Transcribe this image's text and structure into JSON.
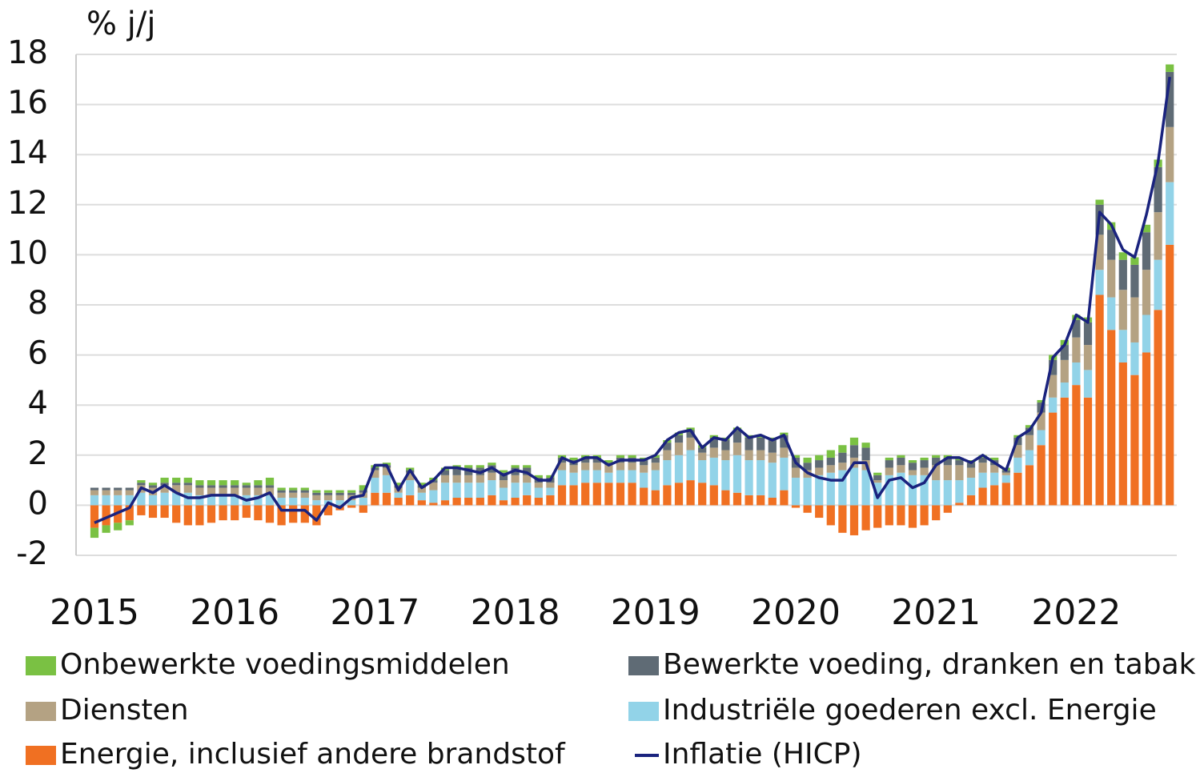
{
  "chart_data": {
    "type": "bar",
    "stacked": true,
    "y_axis_label": "% j/j",
    "categories": [
      "2015",
      null,
      null,
      null,
      null,
      null,
      null,
      null,
      null,
      null,
      null,
      null,
      "2016",
      null,
      null,
      null,
      null,
      null,
      null,
      null,
      null,
      null,
      null,
      null,
      "2017",
      null,
      null,
      null,
      null,
      null,
      null,
      null,
      null,
      null,
      null,
      null,
      "2018",
      null,
      null,
      null,
      null,
      null,
      null,
      null,
      null,
      null,
      null,
      null,
      "2019",
      null,
      null,
      null,
      null,
      null,
      null,
      null,
      null,
      null,
      null,
      null,
      "2020",
      null,
      null,
      null,
      null,
      null,
      null,
      null,
      null,
      null,
      null,
      null,
      "2021",
      null,
      null,
      null,
      null,
      null,
      null,
      null,
      null,
      null,
      null,
      null,
      "2022",
      null,
      null,
      null,
      null,
      null,
      null,
      null,
      null
    ],
    "ylim": [
      -2,
      18
    ],
    "yticks": [
      -2,
      0,
      2,
      4,
      6,
      8,
      10,
      12,
      14,
      16,
      18
    ],
    "grid": true,
    "legend": "bottom",
    "series": [
      {
        "name": "Onbewerkte voedingsmiddelen",
        "color": "#7ac143",
        "values": [
          -0.4,
          -0.3,
          -0.3,
          -0.2,
          0.1,
          0.1,
          0.2,
          0.2,
          0.2,
          0.2,
          0.2,
          0.2,
          0.2,
          0.1,
          0.2,
          0.3,
          0.1,
          0.1,
          0.1,
          0.1,
          0.1,
          0.1,
          0.1,
          0.2,
          0.1,
          0.1,
          0.1,
          0.1,
          0.1,
          0.1,
          0.1,
          0.1,
          0.1,
          0.1,
          0.1,
          0.1,
          0.1,
          0.1,
          0.1,
          0.1,
          0.1,
          0.1,
          0.1,
          0.1,
          0.1,
          0.1,
          0.1,
          0.1,
          0.1,
          0.1,
          0.1,
          0.1,
          0.1,
          0.1,
          0.1,
          0.1,
          0.1,
          0.1,
          0.1,
          0.1,
          0.1,
          0.2,
          0.2,
          0.3,
          0.3,
          0.3,
          0.2,
          0.1,
          0.1,
          0.1,
          0.1,
          0.1,
          0.1,
          0.1,
          0.1,
          0.1,
          0.1,
          0.1,
          0.1,
          0.1,
          0.1,
          0.1,
          0.2,
          0.2,
          0.2,
          0.2,
          0.2,
          0.3,
          0.3,
          0.3,
          0.3,
          0.3,
          0.3
        ]
      },
      {
        "name": "Bewerkte voeding, dranken en tabak",
        "color": "#5f6b75",
        "values": [
          0.1,
          0.1,
          0.1,
          0.1,
          0.1,
          0.1,
          0.1,
          0.1,
          0.1,
          0.1,
          0.1,
          0.1,
          0.1,
          0.1,
          0.1,
          0.1,
          0.1,
          0.1,
          0.1,
          0.1,
          0.1,
          0.1,
          0.1,
          0.1,
          0.1,
          0.1,
          0.1,
          0.1,
          0.1,
          0.1,
          0.2,
          0.3,
          0.3,
          0.3,
          0.3,
          0.3,
          0.3,
          0.3,
          0.2,
          0.2,
          0.2,
          0.2,
          0.2,
          0.2,
          0.1,
          0.2,
          0.2,
          0.2,
          0.2,
          0.3,
          0.3,
          0.3,
          0.2,
          0.4,
          0.4,
          0.5,
          0.5,
          0.5,
          0.5,
          0.5,
          0.4,
          0.3,
          0.3,
          0.3,
          0.4,
          0.5,
          0.5,
          0.2,
          0.3,
          0.3,
          0.3,
          0.3,
          0.3,
          0.3,
          0.2,
          0.2,
          0.2,
          0.2,
          0.1,
          0.3,
          0.3,
          0.4,
          0.6,
          0.6,
          0.7,
          0.9,
          1.2,
          1.2,
          1.2,
          1.3,
          1.5,
          1.8,
          2.2
        ]
      },
      {
        "name": "Diensten",
        "color": "#b4a283",
        "values": [
          0.2,
          0.2,
          0.2,
          0.2,
          0.3,
          0.3,
          0.3,
          0.3,
          0.3,
          0.3,
          0.3,
          0.3,
          0.3,
          0.3,
          0.3,
          0.3,
          0.2,
          0.2,
          0.2,
          0.2,
          0.2,
          0.2,
          0.2,
          0.2,
          0.3,
          0.3,
          0.2,
          0.3,
          0.2,
          0.3,
          0.3,
          0.3,
          0.3,
          0.3,
          0.3,
          0.3,
          0.3,
          0.3,
          0.2,
          0.2,
          0.3,
          0.3,
          0.3,
          0.3,
          0.3,
          0.3,
          0.3,
          0.3,
          0.3,
          0.4,
          0.5,
          0.5,
          0.3,
          0.4,
          0.4,
          0.5,
          0.4,
          0.4,
          0.4,
          0.4,
          0.4,
          0.3,
          0.3,
          0.3,
          0.3,
          0.4,
          0.4,
          0.1,
          0.3,
          0.3,
          0.2,
          0.3,
          0.6,
          0.6,
          0.6,
          0.4,
          0.4,
          0.3,
          0.1,
          0.5,
          0.6,
          0.7,
          0.9,
          0.9,
          1.0,
          1.0,
          1.4,
          1.5,
          1.6,
          1.8,
          1.8,
          1.9,
          2.2
        ]
      },
      {
        "name": "Industriële goederen excl. Energie",
        "color": "#92d3e8",
        "values": [
          0.4,
          0.4,
          0.4,
          0.4,
          0.5,
          0.4,
          0.5,
          0.5,
          0.5,
          0.4,
          0.4,
          0.4,
          0.4,
          0.4,
          0.4,
          0.4,
          0.3,
          0.3,
          0.3,
          0.2,
          0.2,
          0.2,
          0.2,
          0.3,
          0.6,
          0.7,
          0.2,
          0.6,
          0.3,
          0.5,
          0.7,
          0.6,
          0.6,
          0.6,
          0.6,
          0.5,
          0.6,
          0.5,
          0.4,
          0.3,
          0.6,
          0.5,
          0.5,
          0.5,
          0.4,
          0.5,
          0.5,
          0.6,
          0.8,
          1.0,
          1.1,
          1.2,
          0.9,
          1.1,
          1.2,
          1.5,
          1.4,
          1.4,
          1.4,
          1.3,
          1.1,
          1.1,
          1.2,
          1.3,
          1.4,
          1.5,
          1.4,
          0.9,
          1.2,
          1.3,
          1.2,
          1.2,
          1.0,
          1.0,
          0.9,
          0.7,
          0.6,
          0.5,
          0.3,
          0.6,
          0.6,
          0.6,
          0.6,
          0.6,
          0.9,
          1.1,
          1.0,
          1.3,
          1.3,
          1.3,
          1.5,
          2.0,
          2.5
        ]
      },
      {
        "name": "Energie, inclusief andere brandstof",
        "color": "#f07022",
        "values": [
          -0.9,
          -0.8,
          -0.7,
          -0.6,
          -0.4,
          -0.5,
          -0.5,
          -0.7,
          -0.8,
          -0.8,
          -0.7,
          -0.6,
          -0.6,
          -0.5,
          -0.6,
          -0.7,
          -0.8,
          -0.7,
          -0.7,
          -0.8,
          -0.4,
          -0.2,
          -0.1,
          -0.3,
          0.5,
          0.5,
          0.3,
          0.4,
          0.2,
          0.1,
          0.2,
          0.3,
          0.3,
          0.3,
          0.4,
          0.2,
          0.3,
          0.4,
          0.3,
          0.4,
          0.8,
          0.8,
          0.9,
          0.9,
          0.9,
          0.9,
          0.9,
          0.7,
          0.6,
          0.8,
          0.9,
          1.0,
          0.9,
          0.8,
          0.6,
          0.5,
          0.4,
          0.4,
          0.3,
          0.6,
          -0.1,
          -0.3,
          -0.5,
          -0.8,
          -1.1,
          -1.2,
          -1.0,
          -0.9,
          -0.8,
          -0.8,
          -0.9,
          -0.8,
          -0.6,
          -0.3,
          0.1,
          0.4,
          0.7,
          0.8,
          0.9,
          1.3,
          1.6,
          2.4,
          3.7,
          4.3,
          4.8,
          4.3,
          8.4,
          7.0,
          5.7,
          5.2,
          6.1,
          7.8,
          10.4
        ]
      },
      {
        "name": "Inflatie (HICP)",
        "color": "#1a237e",
        "type": "line",
        "values": [
          -0.7,
          -0.5,
          -0.3,
          -0.1,
          0.7,
          0.5,
          0.8,
          0.5,
          0.3,
          0.3,
          0.4,
          0.4,
          0.4,
          0.2,
          0.3,
          0.5,
          -0.2,
          -0.2,
          -0.2,
          -0.6,
          0.1,
          -0.1,
          0.3,
          0.4,
          1.6,
          1.6,
          0.6,
          1.4,
          0.7,
          1.0,
          1.5,
          1.5,
          1.4,
          1.3,
          1.5,
          1.2,
          1.4,
          1.3,
          1.0,
          1.0,
          1.9,
          1.7,
          1.9,
          1.9,
          1.6,
          1.8,
          1.8,
          1.8,
          2.0,
          2.6,
          2.9,
          3.0,
          2.3,
          2.7,
          2.6,
          3.1,
          2.7,
          2.8,
          2.6,
          2.8,
          1.7,
          1.3,
          1.1,
          1.0,
          1.0,
          1.7,
          1.7,
          0.3,
          1.0,
          1.1,
          0.7,
          0.9,
          1.6,
          1.9,
          1.9,
          1.7,
          2.0,
          1.7,
          1.4,
          2.7,
          3.0,
          3.7,
          5.9,
          6.4,
          7.6,
          7.3,
          11.7,
          11.2,
          10.2,
          9.9,
          11.6,
          13.7,
          17.1
        ]
      }
    ]
  }
}
